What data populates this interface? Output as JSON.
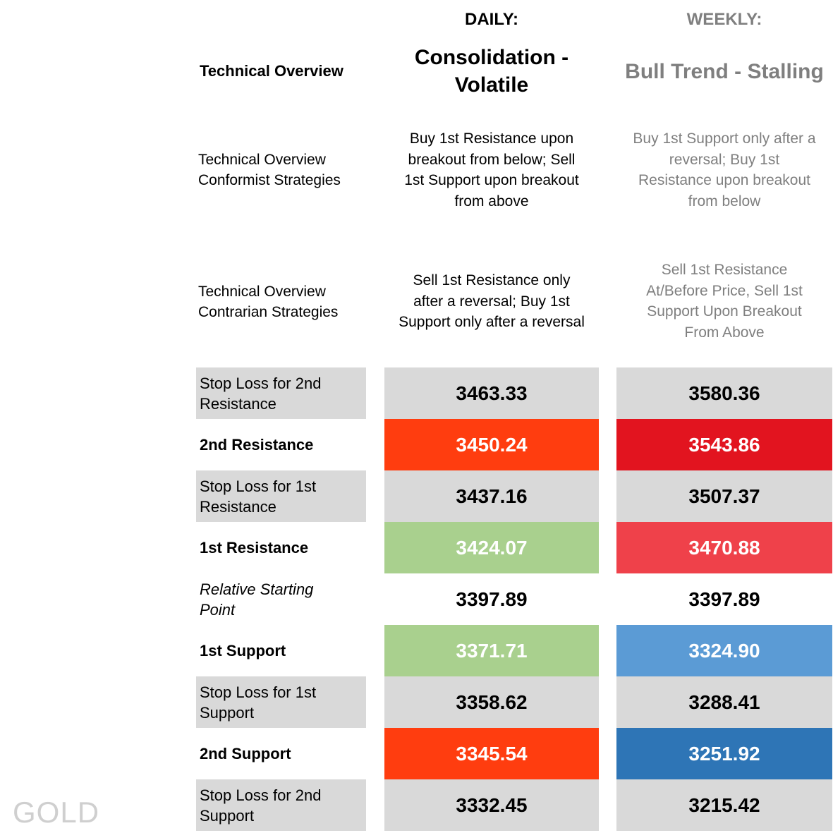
{
  "headers": {
    "daily": "DAILY:",
    "weekly": "WEEKLY:"
  },
  "overview": {
    "label": "Technical Overview",
    "daily": [
      "Consolidation -",
      "Volatile"
    ],
    "weekly": "Bull Trend - Stalling"
  },
  "conformist": {
    "label": [
      "Technical Overview",
      "Conformist Strategies"
    ],
    "daily": [
      "Buy 1st Resistance upon",
      "breakout from below; Sell",
      "1st Support upon breakout",
      "from above"
    ],
    "weekly": [
      "Buy 1st Support only after a",
      "reversal; Buy 1st",
      "Resistance upon breakout",
      "from below"
    ]
  },
  "contrarian": {
    "label": [
      "Technical Overview",
      "Contrarian Strategies"
    ],
    "daily": [
      "Sell 1st Resistance only",
      "after a reversal; Buy 1st",
      "Support only after a reversal"
    ],
    "weekly": [
      "Sell 1st Resistance",
      "At/Before Price, Sell 1st",
      "Support Upon Breakout",
      "From Above"
    ]
  },
  "rows": [
    {
      "label": [
        "Stop Loss for 2nd",
        "Resistance"
      ],
      "daily": "3463.33",
      "weekly": "3580.36",
      "daily_color": "#d9d9d9",
      "weekly_color": "#d9d9d9"
    },
    {
      "label": [
        "2nd Resistance"
      ],
      "daily": "3450.24",
      "weekly": "3543.86",
      "daily_color": "#ff3d0f",
      "weekly_color": "#e2141f"
    },
    {
      "label": [
        "Stop Loss for 1st",
        "Resistance"
      ],
      "daily": "3437.16",
      "weekly": "3507.37",
      "daily_color": "#d9d9d9",
      "weekly_color": "#d9d9d9"
    },
    {
      "label": [
        "1st Resistance"
      ],
      "daily": "3424.07",
      "weekly": "3470.88",
      "daily_color": "#a9d08e",
      "weekly_color": "#ef414a"
    },
    {
      "label": [
        "Relative Starting",
        "Point"
      ],
      "daily": "3397.89",
      "weekly": "3397.89",
      "daily_color": "#ffffff",
      "weekly_color": "#ffffff"
    },
    {
      "label": [
        "1st Support"
      ],
      "daily": "3371.71",
      "weekly": "3324.90",
      "daily_color": "#a9d08e",
      "weekly_color": "#5b9bd5"
    },
    {
      "label": [
        "Stop Loss for 1st",
        "Support"
      ],
      "daily": "3358.62",
      "weekly": "3288.41",
      "daily_color": "#d9d9d9",
      "weekly_color": "#d9d9d9"
    },
    {
      "label": [
        "2nd Support"
      ],
      "daily": "3345.54",
      "weekly": "3251.92",
      "daily_color": "#ff3d0f",
      "weekly_color": "#2e75b6"
    },
    {
      "label": [
        "Stop Loss for 2nd",
        "Support"
      ],
      "daily": "3332.45",
      "weekly": "3215.42",
      "daily_color": "#d9d9d9",
      "weekly_color": "#d9d9d9"
    }
  ],
  "watermark": "GOLD"
}
